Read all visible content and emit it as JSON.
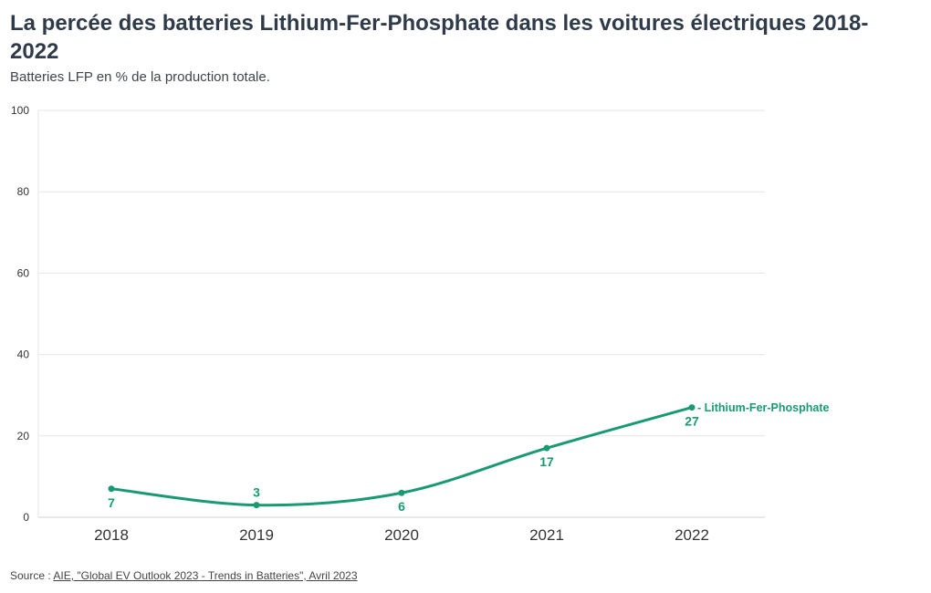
{
  "title": "La percée des batteries Lithium-Fer-Phosphate dans les voitures électriques 2018-2022",
  "subtitle": "Batteries LFP en % de la production totale.",
  "source": {
    "prefix": "Source : ",
    "link_text": "AIE, \"Global EV Outlook 2023 - Trends in Batteries\", Avril 2023"
  },
  "colors": {
    "series": "#1a9a72",
    "grid": "#e6e6e6",
    "axis_text": "#333333"
  },
  "chart_data": {
    "type": "line",
    "x": [
      "2018",
      "2019",
      "2020",
      "2021",
      "2022"
    ],
    "series": [
      {
        "name": "Lithium-Fer-Phosphate",
        "values": [
          7,
          3,
          6,
          17,
          27
        ]
      }
    ],
    "ylim": [
      0,
      100
    ],
    "yticks": [
      0,
      20,
      40,
      60,
      80,
      100
    ],
    "grid": true,
    "legend": "end-of-line label",
    "data_labels": true
  }
}
